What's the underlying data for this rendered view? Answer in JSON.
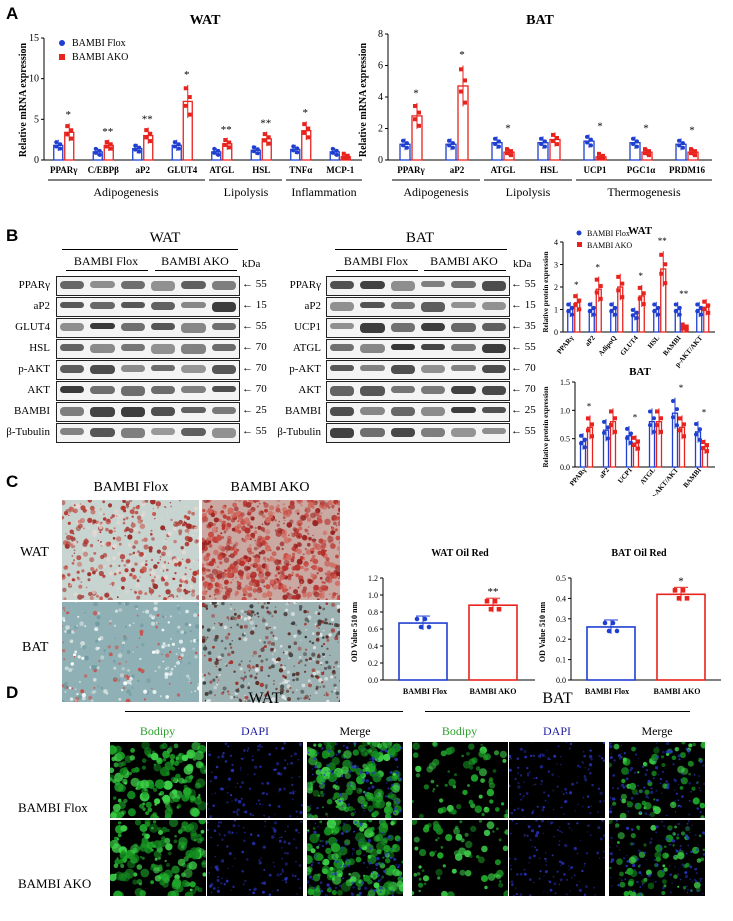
{
  "panels": {
    "A": "A",
    "B": "B",
    "C": "C",
    "D": "D"
  },
  "panelA": {
    "wat": {
      "title": "WAT",
      "ylabel": "Relative mRNA expression",
      "yticks": [
        "0",
        "5",
        "10",
        "15"
      ],
      "legend": [
        "BAMBI Flox",
        "BAMBI AKO"
      ],
      "genes": [
        "PPARγ",
        "C/EBPβ",
        "aP2",
        "GLUT4",
        "ATGL",
        "HSL",
        "TNFα",
        "MCP-1"
      ],
      "sig": [
        "*",
        "**",
        "**",
        "*",
        "**",
        "**",
        "*",
        ""
      ],
      "groups": [
        "Adipogenesis",
        "Lipolysis",
        "Inflammation"
      ]
    },
    "bat": {
      "title": "BAT",
      "ylabel": "Relative mRNA expression",
      "yticks": [
        "0",
        "2",
        "4",
        "6",
        "8"
      ],
      "genes": [
        "PPARγ",
        "aP2",
        "ATGL",
        "HSL",
        "UCP1",
        "PGC1α",
        "PRDM16"
      ],
      "sig": [
        "*",
        "*",
        "*",
        "",
        "*",
        "*",
        "*"
      ],
      "groups": [
        "Adipogenesis",
        "Lipolysis",
        "Thermogenesis"
      ]
    }
  },
  "chart_data": [
    {
      "type": "bar",
      "title": "WAT",
      "ylabel": "Relative mRNA expression",
      "ylim": [
        0,
        15
      ],
      "categories": [
        "PPARγ",
        "C/EBPβ",
        "aP2",
        "GLUT4",
        "ATGL",
        "HSL",
        "TNFα",
        "MCP-1"
      ],
      "series": [
        {
          "name": "BAMBI Flox",
          "values": [
            1.8,
            1.0,
            1.4,
            1.8,
            1.0,
            1.2,
            1.3,
            1.0
          ]
        },
        {
          "name": "BAMBI AKO",
          "values": [
            3.4,
            1.8,
            3.0,
            7.2,
            2.0,
            2.6,
            3.6,
            0.4
          ]
        }
      ]
    },
    {
      "type": "bar",
      "title": "BAT",
      "ylabel": "Relative mRNA expression",
      "ylim": [
        0,
        8
      ],
      "categories": [
        "PPARγ",
        "aP2",
        "ATGL",
        "HSL",
        "UCP1",
        "PGC1α",
        "PRDM16"
      ],
      "series": [
        {
          "name": "BAMBI Flox",
          "values": [
            1.0,
            1.0,
            1.1,
            1.1,
            1.2,
            1.1,
            1.0
          ]
        },
        {
          "name": "BAMBI AKO",
          "values": [
            2.8,
            4.7,
            0.5,
            1.3,
            0.2,
            0.5,
            0.5
          ]
        }
      ]
    },
    {
      "type": "bar",
      "title": "WAT",
      "ylabel": "Relative protein expression",
      "ylim": [
        0,
        4
      ],
      "categories": [
        "PPARγ",
        "aP2",
        "AdipoQ",
        "GLUT4",
        "HSL",
        "BAMBI",
        "p-AKT/AKT"
      ],
      "series": [
        {
          "name": "BAMBI Flox",
          "values": [
            1.0,
            1.0,
            1.0,
            0.8,
            1.0,
            1.0,
            1.0
          ]
        },
        {
          "name": "BAMBI AKO",
          "values": [
            1.3,
            1.9,
            2.0,
            1.6,
            2.8,
            0.2,
            1.1
          ]
        }
      ]
    },
    {
      "type": "bar",
      "title": "BAT",
      "ylabel": "Relative protein expression",
      "ylim": [
        0,
        1.5
      ],
      "categories": [
        "PPARγ",
        "aP2",
        "UCP1",
        "ATGL",
        "p-AKT/AKT",
        "BAMBI"
      ],
      "series": [
        {
          "values": [
            0.45,
            0.65,
            0.55,
            0.8,
            0.95,
            0.62
          ]
        },
        {
          "values": [
            0.7,
            0.8,
            0.42,
            0.8,
            0.7,
            0.36
          ]
        }
      ]
    },
    {
      "type": "bar",
      "title": "WAT Oil Red",
      "ylabel": "OD Value  510 nm",
      "ylim": [
        0,
        1.2
      ],
      "categories": [
        "BAMBI Flox",
        "BAMBI AKO"
      ],
      "values": [
        0.67,
        0.88
      ]
    },
    {
      "type": "bar",
      "title": "BAT Oil Red",
      "ylabel": "OD Value  510 nm",
      "ylim": [
        0,
        0.5
      ],
      "categories": [
        "BAMBI Flox",
        "BAMBI AKO"
      ],
      "values": [
        0.26,
        0.42
      ]
    }
  ],
  "panelB": {
    "wat_title": "WAT",
    "bat_title": "BAT",
    "kda": "kDa",
    "flox": "BAMBI Flox",
    "ako": "BAMBI AKO",
    "wat_rows": [
      {
        "name": "PPARγ",
        "kda": "55"
      },
      {
        "name": "aP2",
        "kda": "15"
      },
      {
        "name": "GLUT4",
        "kda": "55"
      },
      {
        "name": "HSL",
        "kda": "70"
      },
      {
        "name": "p-AKT",
        "kda": "70"
      },
      {
        "name": "AKT",
        "kda": "70"
      },
      {
        "name": "BAMBI",
        "kda": "25"
      },
      {
        "name": "β-Tubulin",
        "kda": "55"
      }
    ],
    "bat_rows": [
      {
        "name": "PPARγ",
        "kda": "55"
      },
      {
        "name": "aP2",
        "kda": "15"
      },
      {
        "name": "UCP1",
        "kda": "35"
      },
      {
        "name": "ATGL",
        "kda": "55"
      },
      {
        "name": "p-AKT",
        "kda": "70"
      },
      {
        "name": "AKT",
        "kda": "70"
      },
      {
        "name": "BAMBI",
        "kda": "25"
      },
      {
        "name": "β-Tubulin",
        "kda": "55"
      }
    ],
    "wat_quant": {
      "title": "WAT",
      "ylabel": "Relative protein expression",
      "yticks": [
        "0",
        "1",
        "2",
        "3",
        "4"
      ],
      "legend": [
        "BAMBI Flox",
        "BAMBI AKO"
      ],
      "sig": [
        "*",
        "*",
        "",
        "*",
        "**",
        "**",
        ""
      ]
    },
    "bat_quant": {
      "title": "BAT",
      "ylabel": "Relative protein expression",
      "yticks": [
        "0.0",
        "0.5",
        "1.0",
        "1.5"
      ],
      "sig": [
        "*",
        "",
        "*",
        "",
        "*",
        "*"
      ]
    }
  },
  "panelC": {
    "flox": "BAMBI Flox",
    "ako": "BAMBI AKO",
    "wat": "WAT",
    "bat": "BAT",
    "oil_wat": {
      "title": "WAT Oil Red",
      "ylabel": "OD Value  510 nm",
      "yticks": [
        "0.0",
        "0.2",
        "0.4",
        "0.6",
        "0.8",
        "1.0",
        "1.2"
      ],
      "sig": "**"
    },
    "oil_bat": {
      "title": "BAT Oil Red",
      "ylabel": "OD Value  510 nm",
      "yticks": [
        "0.0",
        "0.1",
        "0.2",
        "0.3",
        "0.4",
        "0.5"
      ],
      "sig": "*"
    }
  },
  "panelD": {
    "wat": "WAT",
    "bat": "BAT",
    "bodipy": "Bodipy",
    "dapi": "DAPI",
    "merge": "Merge",
    "flox": "BAMBI Flox",
    "ako": "BAMBI AKO",
    "colors": {
      "bodipy": "#2ca02c",
      "dapi": "#1f1fa0",
      "flox": "#1f3fd0",
      "ako": "#e8231e"
    }
  }
}
